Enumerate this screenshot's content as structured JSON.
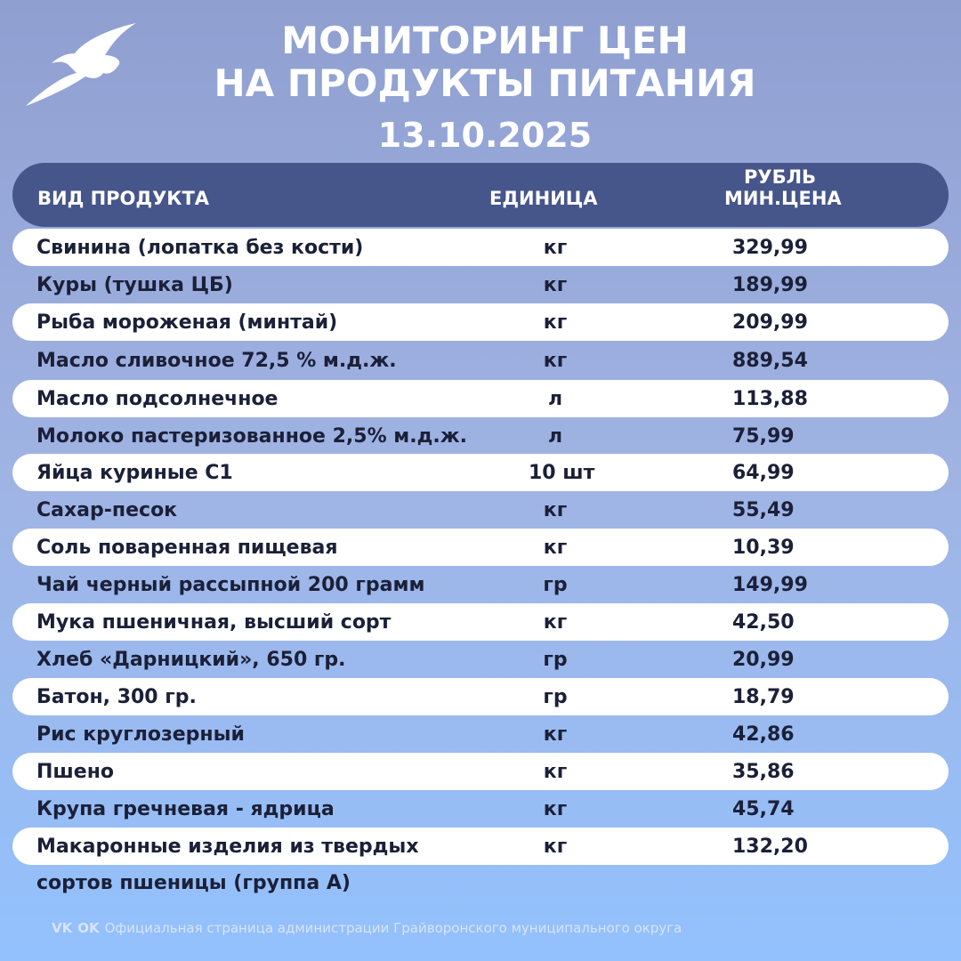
{
  "title_line1": "МОНИТОРИНГ ЦЕН",
  "title_line2": "НА ПРОДУКТЫ ПИТАНИЯ",
  "date": "13.10.2025",
  "header": {
    "product": "ВИД ПРОДУКТА",
    "unit": "ЕДИНИЦА",
    "price_line1": "РУБЛЬ",
    "price_line2": "МИН.ЦЕНА"
  },
  "rows": [
    {
      "product": "Свинина (лопатка без кости)",
      "unit": "кг",
      "price": "329,99"
    },
    {
      "product": "Куры (тушка ЦБ)",
      "unit": "кг",
      "price": "189,99"
    },
    {
      "product": "Рыба мороженая (минтай)",
      "unit": "кг",
      "price": "209,99"
    },
    {
      "product": "Масло сливочное 72,5 % м.д.ж.",
      "unit": "кг",
      "price": "889,54"
    },
    {
      "product": "Масло подсолнечное",
      "unit": "л",
      "price": "113,88"
    },
    {
      "product": "Молоко пастеризованное 2,5% м.д.ж.",
      "unit": "л",
      "price": "75,99"
    },
    {
      "product": "Яйца куриные С1",
      "unit": "10 шт",
      "price": "64,99"
    },
    {
      "product": "Сахар-песок",
      "unit": "кг",
      "price": "55,49"
    },
    {
      "product": "Соль поваренная пищевая",
      "unit": "кг",
      "price": "10,39"
    },
    {
      "product": "Чай черный рассыпной 200 грамм",
      "unit": "гр",
      "price": "149,99"
    },
    {
      "product": "Мука пшеничная, высший сорт",
      "unit": "кг",
      "price": "42,50"
    },
    {
      "product": "Хлеб «Дарницкий», 650 гр.",
      "unit": "гр",
      "price": "20,99"
    },
    {
      "product": "Батон, 300 гр.",
      "unit": "гр",
      "price": "18,79"
    },
    {
      "product": "Рис круглозерный",
      "unit": "кг",
      "price": "42,86"
    },
    {
      "product": "Пшено",
      "unit": "кг",
      "price": "35,86"
    },
    {
      "product": "Крупа гречневая - ядрица",
      "unit": "кг",
      "price": "45,74"
    },
    {
      "product": "Макаронные изделия из твердых",
      "unit": "кг",
      "price": "132,20"
    }
  ],
  "last_row_continuation": "сортов пшеницы (группа А)",
  "footer": {
    "vk": "VK",
    "ok": "OK",
    "text": "Официальная страница администрации Грайворонского муниципального округа"
  },
  "colors": {
    "header": "#46558a",
    "row": "#ffffff",
    "text": "#1b2038"
  }
}
